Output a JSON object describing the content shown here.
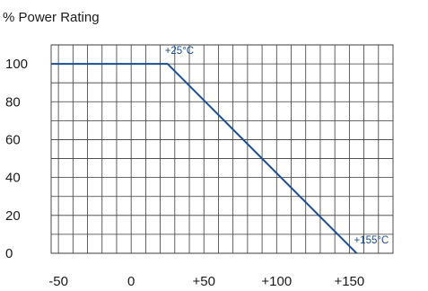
{
  "chart_data": {
    "type": "line",
    "title": "% Power Rating",
    "xlabel": "",
    "ylabel": "",
    "x_ticks": [
      "-50",
      "0",
      "+50",
      "+100",
      "+150"
    ],
    "x_tick_values": [
      -50,
      0,
      50,
      100,
      150
    ],
    "y_ticks": [
      "0",
      "20",
      "40",
      "60",
      "80",
      "100"
    ],
    "y_tick_values": [
      0,
      20,
      40,
      60,
      80,
      100
    ],
    "xlim": [
      -55,
      180
    ],
    "ylim": [
      0,
      110
    ],
    "grid": true,
    "series": [
      {
        "x": [
          -55,
          25,
          155
        ],
        "y": [
          100,
          100,
          0
        ]
      }
    ],
    "annotations": [
      {
        "text": "+25°C",
        "x": 25,
        "y": 100
      },
      {
        "text": "+155°C",
        "x": 155,
        "y": 0
      }
    ],
    "colors": {
      "line": "#1b4f91",
      "annotation": "#1b4f91",
      "grid": "#3a3a3a",
      "text": "#1a1a1a"
    }
  }
}
